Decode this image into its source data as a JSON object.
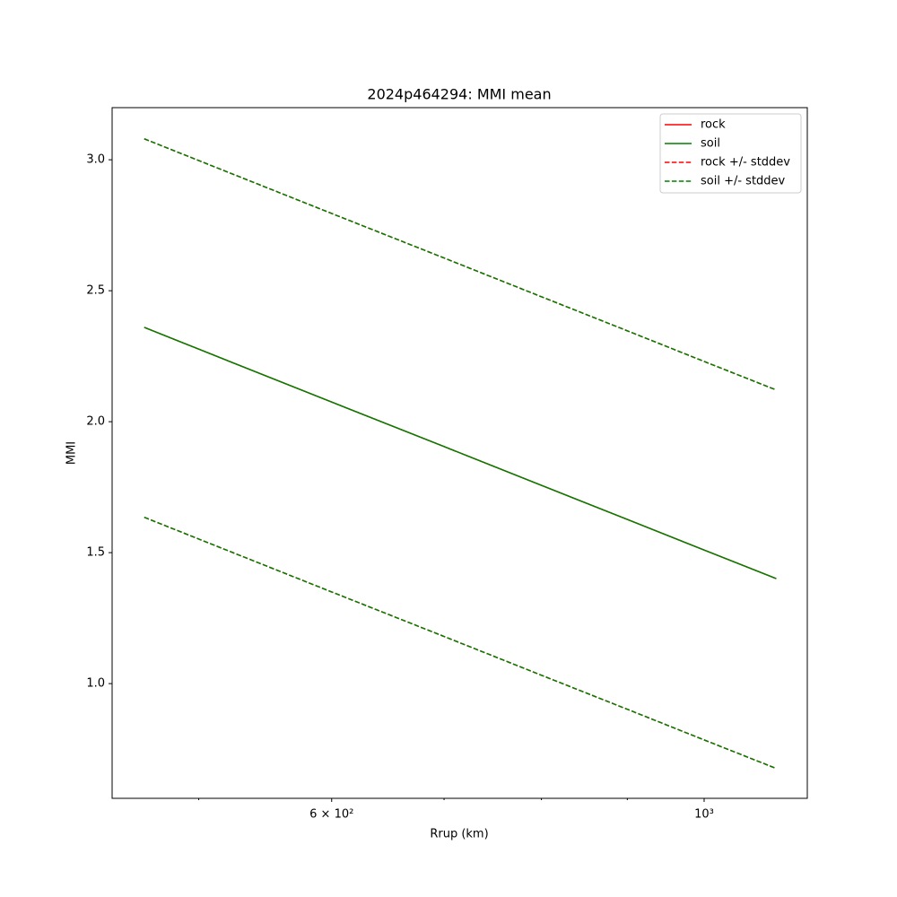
{
  "chart_data": {
    "type": "line",
    "title": "2024p464294: MMI mean",
    "x_label": "Rrup (km)",
    "y_label": "MMI",
    "x": [
      464,
      500,
      600,
      700,
      800,
      900,
      1000,
      1104
    ],
    "xscale": "log",
    "xlim": [
      444,
      1152
    ],
    "xticks": [
      {
        "value": 600,
        "label": "6 × 10²"
      },
      {
        "value": 1000,
        "label": "10³"
      }
    ],
    "xminorticks": [
      500,
      700,
      800,
      900
    ],
    "ylim": [
      0.562,
      3.199
    ],
    "yticks": [
      {
        "value": 1.0,
        "label": "1.0"
      },
      1.5,
      {
        "value": 2.0,
        "label": "2.0"
      },
      2.5,
      {
        "value": 3.0,
        "label": "3.0"
      }
    ],
    "legend": "upper right",
    "series": [
      {
        "name": "rock",
        "color": "#ff0000",
        "dash": false,
        "values": [
          2.36,
          2.277,
          2.075,
          1.905,
          1.757,
          1.627,
          1.51,
          1.401
        ]
      },
      {
        "name": "soil",
        "color": "#008000",
        "dash": false,
        "values": [
          2.36,
          2.277,
          2.075,
          1.905,
          1.757,
          1.627,
          1.51,
          1.401
        ]
      },
      {
        "name": "rock +/- stddev",
        "color": "#ff0000",
        "dash": true,
        "upper": [
          3.08,
          2.997,
          2.795,
          2.625,
          2.477,
          2.347,
          2.23,
          2.121
        ],
        "lower": [
          1.635,
          1.552,
          1.35,
          1.18,
          1.032,
          0.902,
          0.785,
          0.676
        ]
      },
      {
        "name": "soil +/- stddev",
        "color": "#008000",
        "dash": true,
        "upper": [
          3.08,
          2.997,
          2.795,
          2.625,
          2.477,
          2.347,
          2.23,
          2.121
        ],
        "lower": [
          1.635,
          1.552,
          1.35,
          1.18,
          1.032,
          0.902,
          0.785,
          0.676
        ]
      }
    ]
  }
}
